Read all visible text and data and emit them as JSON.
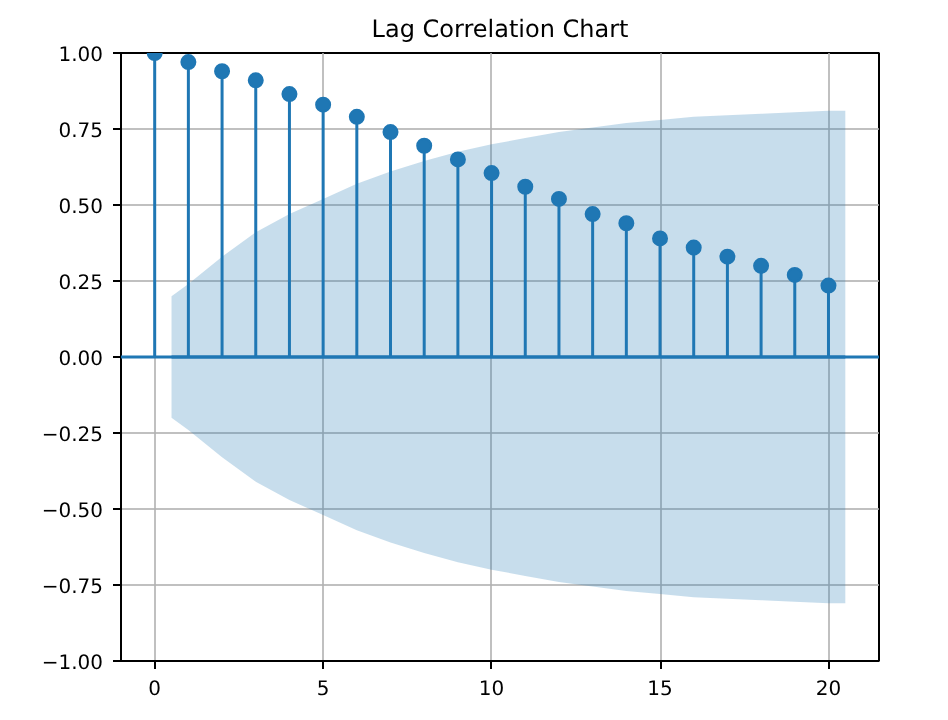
{
  "chart_data": {
    "type": "lollipop",
    "title": "Lag Correlation Chart",
    "x": [
      0,
      1,
      2,
      3,
      4,
      5,
      6,
      7,
      8,
      9,
      10,
      11,
      12,
      13,
      14,
      15,
      16,
      17,
      18,
      19,
      20
    ],
    "series": [
      {
        "color": "#1f77b4",
        "values": [
          1.0,
          0.97,
          0.94,
          0.91,
          0.865,
          0.83,
          0.79,
          0.74,
          0.695,
          0.65,
          0.605,
          0.56,
          0.52,
          0.47,
          0.44,
          0.39,
          0.36,
          0.33,
          0.3,
          0.27,
          0.235
        ]
      },
      {
        "type": "line",
        "marker": "none",
        "color": "#1f77b4",
        "x": [
          0.5,
          1,
          2,
          3,
          4,
          5,
          6,
          7,
          8,
          9,
          10,
          11,
          12,
          13,
          14,
          15,
          16,
          17,
          18,
          19,
          20,
          20.5
        ],
        "values": [
          0,
          0,
          0,
          0,
          0,
          0,
          0,
          0,
          0,
          0,
          0,
          0,
          0,
          0,
          0,
          0,
          0,
          0,
          0,
          0,
          0,
          0
        ],
        "lower": [
          -0.2,
          -0.24,
          -0.33,
          -0.41,
          -0.47,
          -0.52,
          -0.57,
          -0.61,
          -0.645,
          -0.675,
          -0.7,
          -0.72,
          -0.74,
          -0.755,
          -0.77,
          -0.78,
          -0.79,
          -0.795,
          -0.8,
          -0.805,
          -0.81,
          -0.81
        ],
        "upper": [
          0.2,
          0.24,
          0.33,
          0.41,
          0.47,
          0.52,
          0.57,
          0.61,
          0.645,
          0.675,
          0.7,
          0.72,
          0.74,
          0.755,
          0.77,
          0.78,
          0.79,
          0.795,
          0.8,
          0.805,
          0.81,
          0.81
        ]
      }
    ],
    "ref_lines": [
      {
        "axis": "y",
        "value": 0,
        "color": "#1f77b4"
      }
    ],
    "marker": "circle",
    "grid": true,
    "xlim": [
      -1,
      21.5
    ],
    "xticks": [
      0,
      5,
      10,
      15,
      20
    ],
    "ylim": [
      -1,
      1
    ],
    "yticks": [
      {
        "value": -1,
        "label": "−1.00"
      },
      {
        "value": -0.75,
        "label": "−0.75"
      },
      {
        "value": -0.5,
        "label": "−0.50"
      },
      {
        "value": -0.25,
        "label": "−0.25"
      },
      {
        "value": 0,
        "label": "0.00"
      },
      {
        "value": 0.25,
        "label": "0.25"
      },
      {
        "value": 0.5,
        "label": "0.50"
      },
      {
        "value": 0.75,
        "label": "0.75"
      },
      {
        "value": 1,
        "label": "1.00"
      }
    ]
  }
}
